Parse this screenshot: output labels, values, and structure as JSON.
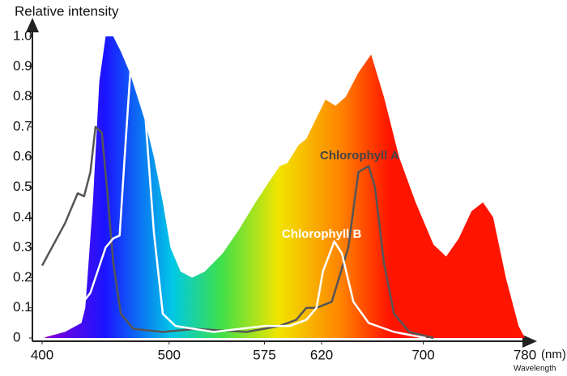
{
  "chart_data": {
    "type": "spectrum",
    "y_axis_title": "Relative intensity",
    "x_unit": "(nm)",
    "x_axis_title": "Wavelength",
    "xlim": [
      400,
      780
    ],
    "xticks": [
      400,
      500,
      575,
      620,
      700,
      780
    ],
    "ylim": [
      0,
      1
    ],
    "yticks": [
      0,
      0.1,
      0.2,
      0.3,
      0.4,
      0.5,
      0.6,
      0.7,
      0.8,
      0.9,
      {
        "value": 1,
        "label": "1.0"
      }
    ],
    "series": [
      {
        "colors": [
          "#8a00d4",
          "#1a14ff",
          "#00c8e6",
          "#3ee04a",
          "#f2e400",
          "#ff8200",
          "#ff1400"
        ],
        "x": [
          400,
          418,
          431,
          434,
          440,
          445,
          450,
          456,
          462,
          469,
          475,
          481,
          488,
          495,
          501,
          509,
          518,
          528,
          542,
          555,
          568,
          579,
          587,
          593,
          602,
          608,
          616,
          623,
          631,
          639,
          649,
          659,
          669,
          681,
          694,
          708,
          718,
          728,
          738,
          747,
          755,
          765,
          775,
          780
        ],
        "values": [
          0,
          0.02,
          0.05,
          0.1,
          0.45,
          0.85,
          1.0,
          1.0,
          0.95,
          0.88,
          0.8,
          0.72,
          0.6,
          0.45,
          0.3,
          0.22,
          0.2,
          0.22,
          0.28,
          0.36,
          0.45,
          0.52,
          0.57,
          0.58,
          0.64,
          0.66,
          0.73,
          0.79,
          0.77,
          0.8,
          0.88,
          0.94,
          0.8,
          0.6,
          0.45,
          0.31,
          0.27,
          0.33,
          0.42,
          0.45,
          0.4,
          0.2,
          0.04,
          0
        ]
      },
      {
        "name": "Chlorophyll A",
        "color": "#555555",
        "x": [
          400,
          418,
          428,
          433,
          438,
          442,
          447,
          451,
          456,
          462,
          472,
          495,
          521,
          561,
          587,
          600,
          608,
          616,
          628,
          641,
          649,
          657,
          662,
          669,
          677,
          689,
          708
        ],
        "values": [
          0.24,
          0.38,
          0.48,
          0.47,
          0.55,
          0.7,
          0.68,
          0.5,
          0.25,
          0.08,
          0.03,
          0.02,
          0.03,
          0.02,
          0.04,
          0.06,
          0.1,
          0.1,
          0.12,
          0.3,
          0.55,
          0.57,
          0.5,
          0.25,
          0.08,
          0.02,
          0
        ]
      },
      {
        "name": "Chlorophyll B",
        "color": "#ffffff",
        "x": [
          400,
          418,
          438,
          450,
          456,
          461,
          465,
          470,
          476,
          481,
          488,
          495,
          505,
          535,
          575,
          595,
          608,
          616,
          621,
          630,
          636,
          645,
          657,
          677,
          702
        ],
        "values": [
          0,
          0.04,
          0.15,
          0.3,
          0.33,
          0.34,
          0.6,
          0.92,
          0.9,
          0.75,
          0.35,
          0.08,
          0.04,
          0.02,
          0.04,
          0.04,
          0.06,
          0.1,
          0.22,
          0.32,
          0.28,
          0.12,
          0.05,
          0.02,
          0
        ]
      }
    ]
  }
}
